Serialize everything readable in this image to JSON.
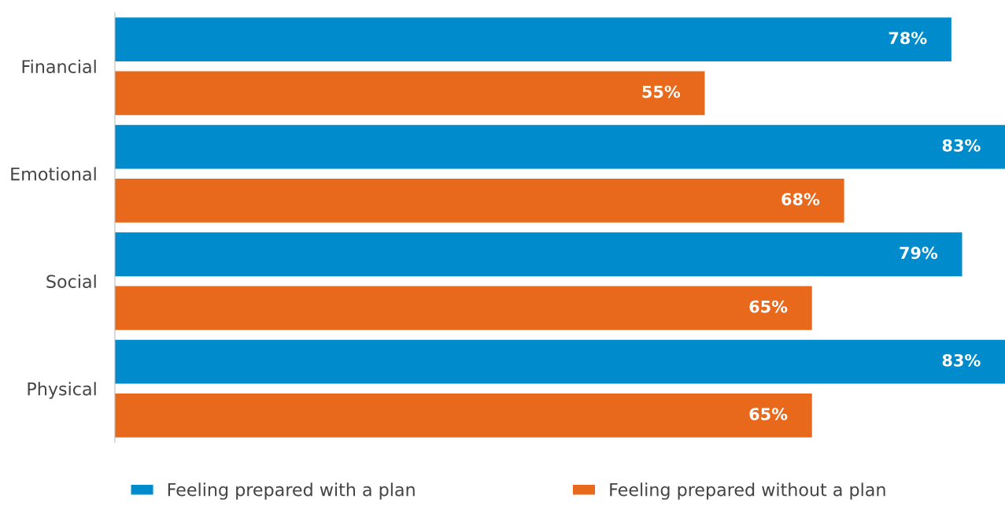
{
  "chart_data": {
    "type": "bar",
    "orientation": "horizontal",
    "categories": [
      "Financial",
      "Emotional",
      "Social",
      "Physical"
    ],
    "series": [
      {
        "name": "Feeling prepared with a plan",
        "color": "#008ccc",
        "values": [
          78,
          83,
          79,
          83
        ],
        "value_labels": [
          "78%",
          "83%",
          "79%",
          "83%"
        ]
      },
      {
        "name": "Feeling prepared without a plan",
        "color": "#e8691c",
        "values": [
          55,
          68,
          65,
          65
        ],
        "value_labels": [
          "55%",
          "68%",
          "65%",
          "65%"
        ]
      }
    ],
    "legend": "bottom",
    "grid": false
  }
}
